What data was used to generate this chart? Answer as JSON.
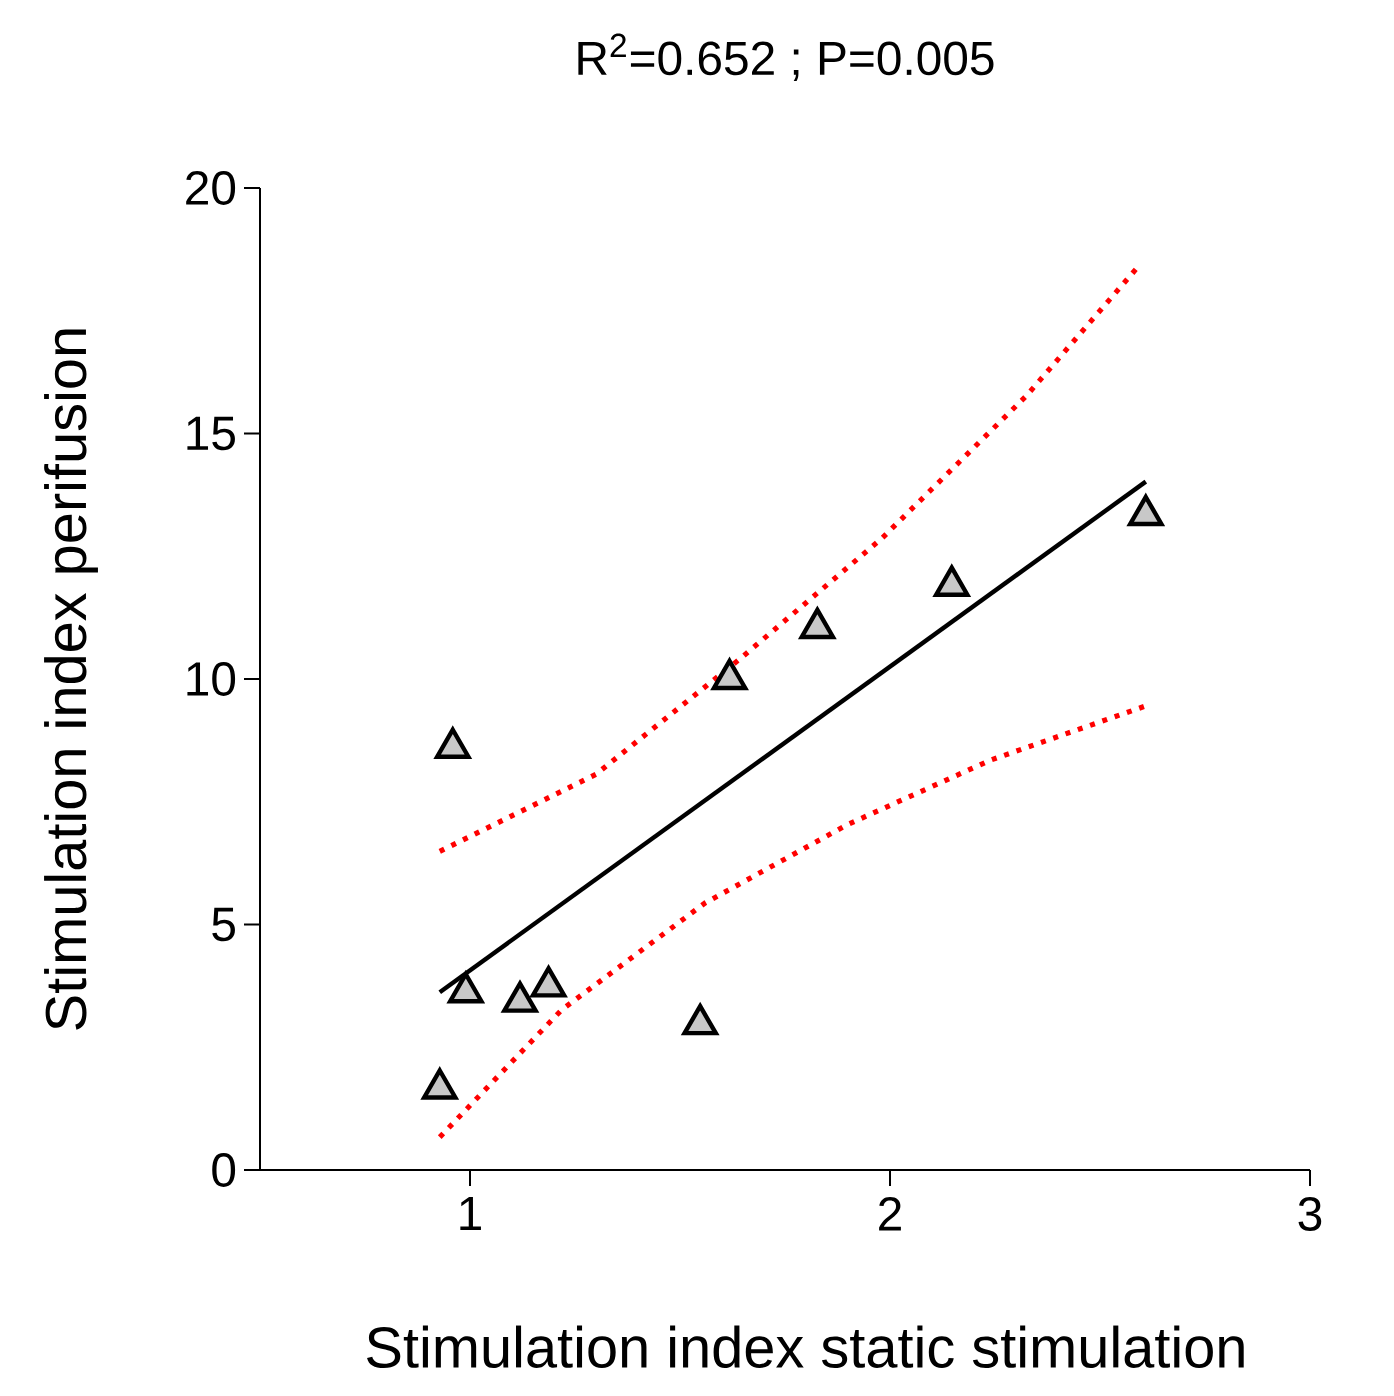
{
  "chart_data": {
    "type": "scatter",
    "title": "R$^{2}$=0.652 ; P=0.005",
    "xlabel": "Stimulation index static stimulation",
    "ylabel": "Stimulation index perifusion",
    "xlim": [
      0.5,
      3
    ],
    "ylim": [
      0,
      20
    ],
    "xticks": [
      1,
      2,
      3
    ],
    "yticks": [
      0,
      5,
      10,
      15,
      20
    ],
    "series": [
      {
        "marker": "triangle",
        "color": "#c8c8c8",
        "x": [
          0.928,
          0.959,
          0.99,
          1.119,
          1.187,
          1.548,
          1.618,
          1.827,
          2.147,
          2.609
        ],
        "values": [
          1.66,
          8.6,
          3.62,
          3.43,
          3.74,
          2.97,
          10.0,
          11.04,
          11.9,
          13.34
        ]
      },
      {
        "type": "line",
        "color": "#000000",
        "line_style": "solid",
        "x": [
          0.928,
          2.609
        ],
        "values": [
          3.62,
          14.02
        ]
      },
      {
        "type": "line",
        "color": "#ff0000",
        "line_style": "dotted",
        "x": [
          0.928,
          1.3,
          1.64,
          1.98,
          2.325,
          2.597
        ],
        "values": [
          6.49,
          8.06,
          10.39,
          12.86,
          15.77,
          18.46
        ]
      },
      {
        "type": "line",
        "color": "#ff0000",
        "line_style": "dotted",
        "x": [
          0.928,
          1.218,
          1.56,
          1.9,
          2.24,
          2.605
        ],
        "values": [
          0.67,
          3.26,
          5.44,
          7.04,
          8.35,
          9.44
        ]
      }
    ]
  }
}
